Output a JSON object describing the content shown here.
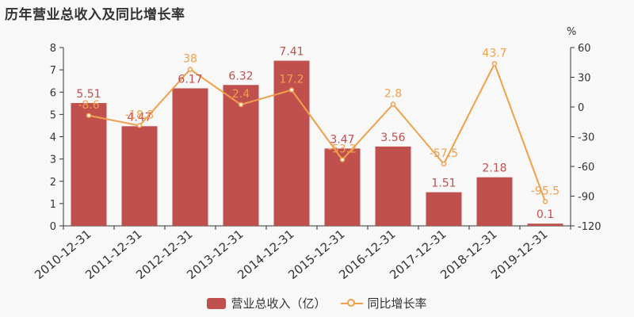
{
  "title": "历年营业总收入及同比增长率",
  "colors": {
    "bar": "#c0504d",
    "line": "#f0a04b",
    "axis": "#333333",
    "grid": "#e6e6e6",
    "background": "#f9f8f8"
  },
  "legend": {
    "bar_label": "营业总收入（亿）",
    "line_label": "同比增长率"
  },
  "chart_data": {
    "type": "bar",
    "title": "历年营业总收入及同比增长率",
    "categories": [
      "2010-12-31",
      "2011-12-31",
      "2012-12-31",
      "2013-12-31",
      "2014-12-31",
      "2015-12-31",
      "2016-12-31",
      "2017-12-31",
      "2018-12-31",
      "2019-12-31"
    ],
    "series": [
      {
        "name": "营业总收入（亿）",
        "type": "bar",
        "axis": "left",
        "values": [
          5.51,
          4.47,
          6.17,
          6.32,
          7.41,
          3.47,
          3.56,
          1.51,
          2.18,
          0.1
        ],
        "labels": [
          "5.51",
          "4.47",
          "6.17",
          "6.32",
          "7.41",
          "3.47",
          "3.56",
          "1.51",
          "2.18",
          "0.1"
        ]
      },
      {
        "name": "同比增长率",
        "type": "line",
        "axis": "right",
        "values": [
          -8.6,
          -18.8,
          38,
          2.4,
          17.2,
          -53.2,
          2.8,
          -57.5,
          43.7,
          -95.5
        ],
        "labels": [
          "-8.6",
          "-18.8",
          "38",
          "2.4",
          "17.2",
          "-53.2",
          "2.8",
          "-57.5",
          "43.7",
          "-95.5"
        ]
      }
    ],
    "left_axis": {
      "ylim": [
        0,
        8
      ],
      "ticks": [
        "0",
        "1",
        "2",
        "3",
        "4",
        "5",
        "6",
        "7",
        "8"
      ]
    },
    "right_axis": {
      "unit": "%",
      "ylim": [
        -120,
        60
      ],
      "ticks": [
        "-120",
        "-90",
        "-60",
        "-30",
        "0",
        "30",
        "60"
      ]
    },
    "grid": false,
    "legend_position": "bottom-center"
  }
}
